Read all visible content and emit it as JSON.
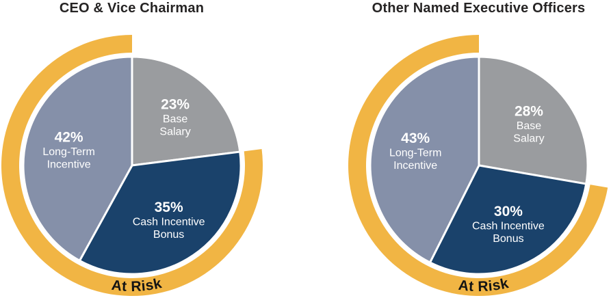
{
  "colors": {
    "gold": "#F1B544",
    "gray": "#9A9C9F",
    "navy": "#1A426B",
    "slate": "#8590A9",
    "slice_text": "#FFFFFF",
    "title_text": "#262424",
    "at_risk_text": "#141414",
    "slice_separator": "#FFFFFF"
  },
  "chart_data": [
    {
      "type": "pie",
      "title": "CEO & Vice Chairman",
      "slices": [
        {
          "key": "base-salary",
          "value_label": "23%",
          "pct": 23,
          "label_lines": [
            "Base",
            "Salary"
          ],
          "color_key": "gray",
          "at_risk": false
        },
        {
          "key": "cash-incentive-bonus",
          "value_label": "35%",
          "pct": 35,
          "label_lines": [
            "Cash Incentive",
            "Bonus"
          ],
          "color_key": "navy",
          "at_risk": true
        },
        {
          "key": "long-term-incentive",
          "value_label": "42%",
          "pct": 42,
          "label_lines": [
            "Long-Term",
            "Incentive"
          ],
          "color_key": "slate",
          "at_risk": true
        }
      ],
      "at_risk_arc": {
        "label": "At Risk",
        "pct_covered": 77,
        "color_key": "gold"
      }
    },
    {
      "type": "pie",
      "title": "Other Named Executive Officers",
      "slices": [
        {
          "key": "base-salary",
          "value_label": "28%",
          "pct": 28,
          "label_lines": [
            "Base",
            "Salary"
          ],
          "color_key": "gray",
          "at_risk": false
        },
        {
          "key": "cash-incentive-bonus",
          "value_label": "30%",
          "pct": 30,
          "label_lines": [
            "Cash Incentive",
            "Bonus"
          ],
          "color_key": "navy",
          "at_risk": true
        },
        {
          "key": "long-term-incentive",
          "value_label": "43%",
          "pct": 43,
          "label_lines": [
            "Long-Term",
            "Incentive"
          ],
          "color_key": "slate",
          "at_risk": true
        }
      ],
      "at_risk_arc": {
        "label": "At Risk",
        "pct_covered": 73,
        "color_key": "gold"
      }
    }
  ]
}
